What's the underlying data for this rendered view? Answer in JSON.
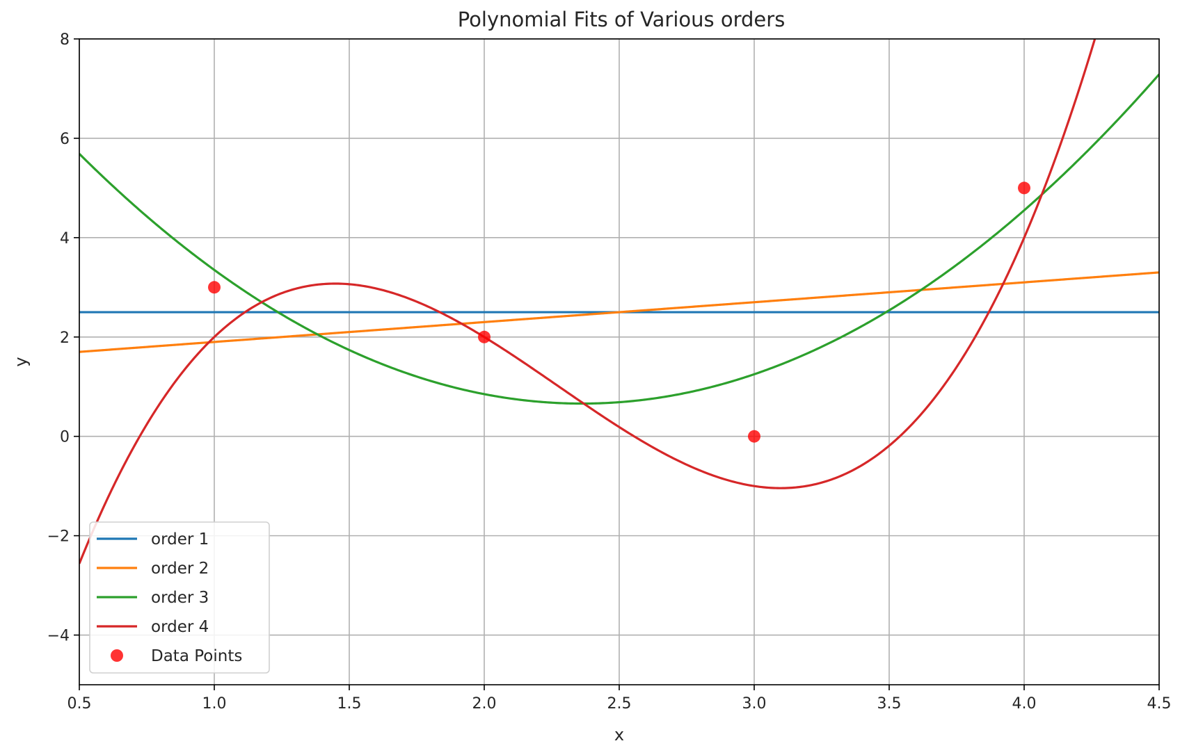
{
  "chart_data": {
    "type": "line",
    "title": "Polynomial Fits of Various orders",
    "xlabel": "x",
    "ylabel": "y",
    "xlim": [
      0.5,
      4.5
    ],
    "ylim": [
      -5,
      8
    ],
    "xticks": [
      0.5,
      1.0,
      1.5,
      2.0,
      2.5,
      3.0,
      3.5,
      4.0,
      4.5
    ],
    "xtick_labels": [
      "0.5",
      "1.0",
      "1.5",
      "2.0",
      "2.5",
      "3.0",
      "3.5",
      "4.0",
      "4.5"
    ],
    "yticks": [
      -4,
      -2,
      0,
      2,
      4,
      6,
      8
    ],
    "ytick_labels": [
      "−4",
      "−2",
      "0",
      "2",
      "4",
      "6",
      "8"
    ],
    "grid": true,
    "legend_position": "lower-left",
    "series": [
      {
        "name": "order 1",
        "color": "#1f77b4",
        "kind": "line",
        "coefficients": [
          2.5
        ]
      },
      {
        "name": "order 2",
        "color": "#ff7f0e",
        "kind": "line",
        "coefficients": [
          1.5,
          0.4
        ]
      },
      {
        "name": "order 3",
        "color": "#2ca02c",
        "kind": "line",
        "coefficients": [
          8.75,
          -6.85,
          1.45
        ]
      },
      {
        "name": "order 4",
        "color": "#d62728",
        "kind": "line",
        "coefficients": [
          -12.0,
          24.6667,
          -12.5,
          1.8333
        ]
      }
    ],
    "scatter": {
      "name": "Data Points",
      "color": "#ff0000",
      "points": [
        {
          "x": 1,
          "y": 3
        },
        {
          "x": 2,
          "y": 2
        },
        {
          "x": 3,
          "y": 0
        },
        {
          "x": 4,
          "y": 5
        }
      ]
    }
  }
}
